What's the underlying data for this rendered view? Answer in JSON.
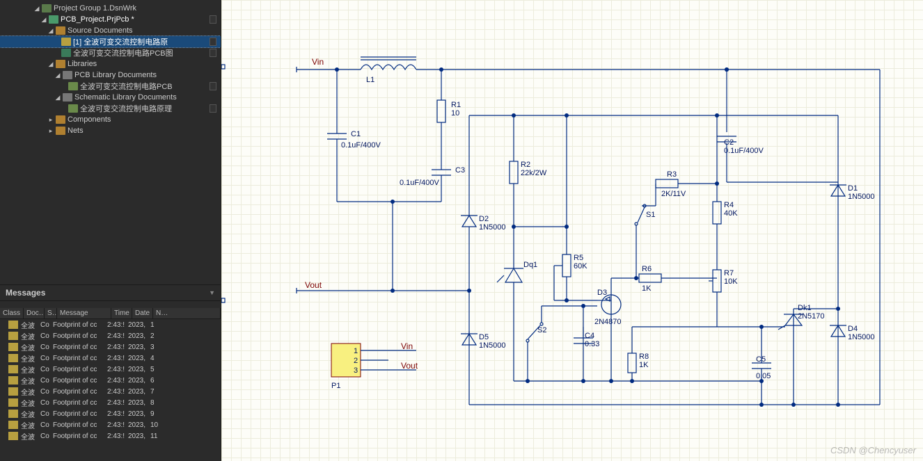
{
  "tree": {
    "root": "Project Group 1.DsnWrk",
    "project": "PCB_Project.PrjPcb *",
    "folders": {
      "src": "Source Documents",
      "pcblib": "PCB Library Documents",
      "schlib": "Schematic Library Documents",
      "libs": "Libraries",
      "comps": "Components",
      "nets": "Nets"
    },
    "docs": {
      "sch": "[1] 全波可变交流控制电路原",
      "pcb": "全波可变交流控制电路PCB图",
      "pcblib": "全波可变交流控制电路PCB",
      "schlib": "全波可变交流控制电路原理"
    }
  },
  "messages": {
    "title": "Messages",
    "cols": {
      "class": "Class",
      "doc": "Doc…",
      "src": "S…",
      "msg": "Message",
      "time": "Time",
      "date": "Date",
      "no": "N…"
    },
    "row_doc": "全波",
    "row_src": "Co",
    "row_msg": "Footprint of cc",
    "row_time": "2:43:!",
    "row_date": "2023,",
    "count": 11
  },
  "schematic": {
    "colors": {
      "wire": "#002a80",
      "text": "#001560",
      "net": "#7a0000",
      "conn_fill": "#f8f080",
      "conn_stroke": "#7a0000",
      "bg": "#fdfdf8"
    },
    "nets": {
      "vin": "Vin",
      "vout": "Vout"
    },
    "conn": {
      "ref": "P1",
      "pins": [
        "1",
        "2",
        "3"
      ],
      "labels": [
        "Vin",
        "",
        "Vout"
      ]
    },
    "comps": {
      "L1": {
        "ref": "L1",
        "val": ""
      },
      "C1": {
        "ref": "C1",
        "val": "0.1uF/400V"
      },
      "C2": {
        "ref": "C2",
        "val": "0.1uF/400V"
      },
      "C3": {
        "ref": "C3",
        "val": "0.1uF/400V"
      },
      "C4": {
        "ref": "C4",
        "val": "0.33"
      },
      "C5": {
        "ref": "C5",
        "val": "0.05"
      },
      "R1": {
        "ref": "R1",
        "val": "10"
      },
      "R2": {
        "ref": "R2",
        "val": "22k/2W"
      },
      "R3": {
        "ref": "R3",
        "val": "2K/11V"
      },
      "R4": {
        "ref": "R4",
        "val": "40K"
      },
      "R5": {
        "ref": "R5",
        "val": "60K"
      },
      "R6": {
        "ref": "R6",
        "val": "1K"
      },
      "R7": {
        "ref": "R7",
        "val": "10K"
      },
      "R8": {
        "ref": "R8",
        "val": "1K"
      },
      "D1": {
        "ref": "D1",
        "val": "1N5000"
      },
      "D2": {
        "ref": "D2",
        "val": "1N5000"
      },
      "D4": {
        "ref": "D4",
        "val": "1N5000"
      },
      "D5": {
        "ref": "D5",
        "val": "1N5000"
      },
      "D3": {
        "ref": "D3",
        "val": "2N4870"
      },
      "Dq1": {
        "ref": "Dq1",
        "val": ""
      },
      "Dk1": {
        "ref": "Dk1",
        "val": "2N5170"
      },
      "S1": {
        "ref": "S1",
        "val": ""
      },
      "S2": {
        "ref": "S2",
        "val": ""
      }
    }
  },
  "watermark": "CSDN @Chencyuser"
}
